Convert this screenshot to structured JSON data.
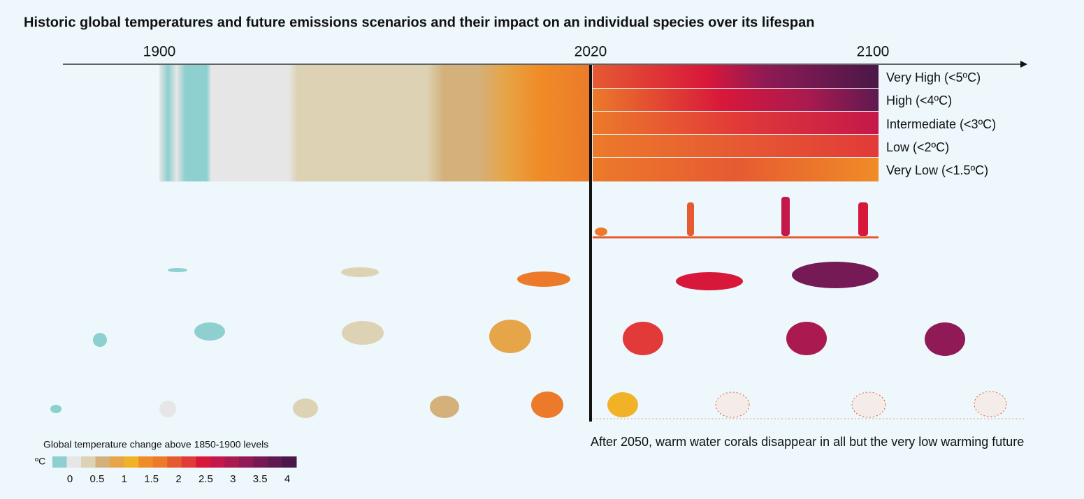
{
  "title": "Historic global temperatures and future emissions scenarios and their impact on an individual species over its lifespan",
  "timeline": {
    "years": [
      "1900",
      "2020",
      "2100"
    ]
  },
  "scenarios": [
    "Very High (<5ºC)",
    "High (<4ºC)",
    "Intermediate (<3ºC)",
    "Low (<2ºC)",
    "Very Low (<1.5ºC)"
  ],
  "caption": "After 2050, warm water corals disappear in all but the very low warming future",
  "legend": {
    "title": "Global temperature change above 1850-1900 levels",
    "unit": "ºC",
    "ticks": [
      "0",
      "0.5",
      "1",
      "1.5",
      "2",
      "2.5",
      "3",
      "3.5",
      "4"
    ],
    "colors": [
      "#8ecfd0",
      "#e6e6e6",
      "#ddd2b4",
      "#d4b07a",
      "#e6a548",
      "#f2b228",
      "#f08c27",
      "#ec7a2a",
      "#e65a32",
      "#e23a38",
      "#d8183a",
      "#c4184a",
      "#aa1a50",
      "#901a55",
      "#761a55",
      "#5e1a50",
      "#4a1848"
    ]
  }
}
